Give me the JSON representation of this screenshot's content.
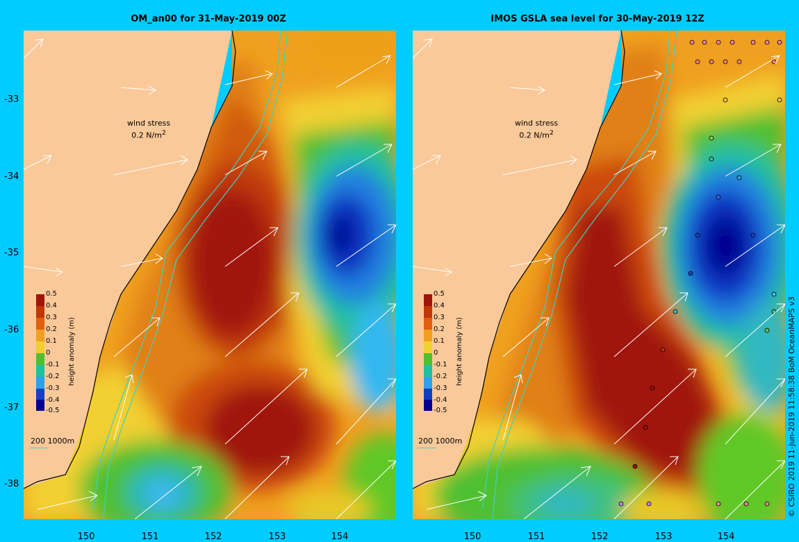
{
  "panels": [
    {
      "title": "OM_an00 for 31-May-2019 00Z"
    },
    {
      "title": "IMOS GSLA sea level  for 30-May-2019 12Z"
    }
  ],
  "y_ticks": [
    "-33",
    "-34",
    "-35",
    "-36",
    "-37",
    "-38"
  ],
  "x_ticks": [
    "150",
    "151",
    "152",
    "153",
    "154"
  ],
  "wind_legend": {
    "line1": "wind stress",
    "line2": "0.2 N/m",
    "sup": "2"
  },
  "colorbar": {
    "title": "height anomaly (m)",
    "ticks": [
      "0.5",
      "0.4",
      "0.3",
      "0.2",
      "0.1",
      "0",
      "-0.1",
      "-0.2",
      "-0.3",
      "-0.4",
      "-0.5"
    ]
  },
  "depth_legend": "200  1000m",
  "footer": "© CSIRO 2019   11-Jun-2019 11:58:38 BoM OceanMAPS v3",
  "colors": {
    "land": "#fac99a",
    "frame": "#00ccff",
    "bathy": "#40d0c0"
  }
}
